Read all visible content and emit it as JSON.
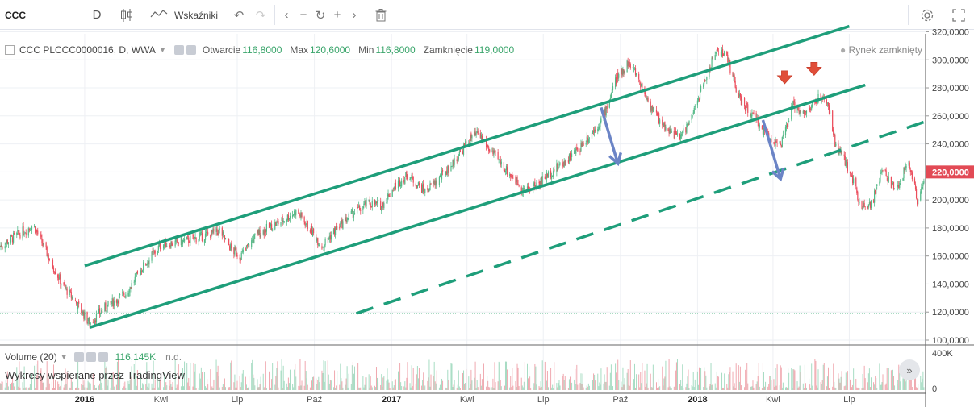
{
  "toolbar": {
    "symbol": "CCC",
    "interval": "D",
    "indicators_label": "Wskaźniki"
  },
  "icons": {
    "candles": "candlestick-icon",
    "indicators": "indicators-wave-icon",
    "undo": "undo-icon",
    "redo": "redo-icon",
    "left": "chevron-left-icon",
    "zoom_out": "minus-icon",
    "reset": "reset-icon",
    "zoom_in": "plus-icon",
    "right": "chevron-right-icon",
    "trash": "trash-icon",
    "settings": "gear-icon",
    "fullscreen": "fullscreen-icon"
  },
  "legend": {
    "name": "CCC PLCCC0000016, D, WWA",
    "open_label": "Otwarcie",
    "open_value": "116,8000",
    "max_label": "Max",
    "max_value": "120,6000",
    "min_label": "Min",
    "min_value": "116,8000",
    "close_label": "Zamknięcie",
    "close_value": "119,0000",
    "market_status": "Rynek zamknięty"
  },
  "volume_legend": {
    "label": "Volume (20)",
    "value": "116,145K",
    "na": "n.d."
  },
  "watermark": "Wykresy wspierane przez TradingView",
  "colors": {
    "up": "#53b987",
    "down": "#eb4d5c",
    "channel": "#1e9e7a",
    "arrow_blue": "#6b84c6",
    "arrow_red": "#e04e39",
    "price_tag": "#e24a55"
  },
  "chart_data": {
    "type": "candlestick",
    "y_ticks": [
      "320,0000",
      "300,0000",
      "280,0000",
      "260,0000",
      "240,0000",
      "220,0000",
      "200,0000",
      "180,0000",
      "160,0000",
      "140,0000",
      "120,0000",
      "100,0000"
    ],
    "y_tick_values": [
      320,
      300,
      280,
      260,
      240,
      220,
      200,
      180,
      160,
      140,
      120,
      100
    ],
    "ylim": [
      100,
      322
    ],
    "x_ticks": [
      "2016",
      "Kwi",
      "Lip",
      "Paź",
      "2017",
      "Kwi",
      "Lip",
      "Paź",
      "2018",
      "Kwi",
      "Lip"
    ],
    "x_tick_bold": [
      true,
      false,
      false,
      false,
      true,
      false,
      false,
      false,
      true,
      false,
      false
    ],
    "x_tick_dates": [
      "2016-01-01",
      "2016-04-01",
      "2016-07-01",
      "2016-10-01",
      "2017-01-01",
      "2017-04-01",
      "2017-07-01",
      "2017-10-01",
      "2018-01-01",
      "2018-04-01",
      "2018-07-01"
    ],
    "x_range": [
      "2015-09-22",
      "2018-09-30"
    ],
    "last_price": 220.0,
    "last_price_label": "220,0000",
    "reference_level": 119.0,
    "volume_max_label": "400K",
    "volume_zero_label": "0",
    "price_path": [
      [
        "2015-09-22",
        167
      ],
      [
        "2015-10-15",
        176
      ],
      [
        "2015-11-01",
        182
      ],
      [
        "2015-11-20",
        158
      ],
      [
        "2015-12-05",
        140
      ],
      [
        "2015-12-20",
        128
      ],
      [
        "2016-01-07",
        112
      ],
      [
        "2016-01-25",
        123
      ],
      [
        "2016-02-20",
        134
      ],
      [
        "2016-03-10",
        152
      ],
      [
        "2016-04-01",
        168
      ],
      [
        "2016-04-25",
        170
      ],
      [
        "2016-05-20",
        174
      ],
      [
        "2016-06-10",
        178
      ],
      [
        "2016-06-25",
        164
      ],
      [
        "2016-07-05",
        160
      ],
      [
        "2016-07-25",
        176
      ],
      [
        "2016-08-20",
        184
      ],
      [
        "2016-09-10",
        192
      ],
      [
        "2016-09-25",
        180
      ],
      [
        "2016-10-10",
        167
      ],
      [
        "2016-10-25",
        178
      ],
      [
        "2016-11-15",
        190
      ],
      [
        "2016-12-05",
        198
      ],
      [
        "2016-12-20",
        196
      ],
      [
        "2017-01-05",
        210
      ],
      [
        "2017-01-20",
        218
      ],
      [
        "2017-02-10",
        206
      ],
      [
        "2017-02-25",
        214
      ],
      [
        "2017-03-15",
        226
      ],
      [
        "2017-04-05",
        244
      ],
      [
        "2017-04-15",
        247
      ],
      [
        "2017-04-25",
        238
      ],
      [
        "2017-05-20",
        220
      ],
      [
        "2017-06-10",
        206
      ],
      [
        "2017-06-25",
        212
      ],
      [
        "2017-07-15",
        222
      ],
      [
        "2017-08-05",
        232
      ],
      [
        "2017-08-25",
        246
      ],
      [
        "2017-09-10",
        258
      ],
      [
        "2017-09-25",
        285
      ],
      [
        "2017-10-10",
        298
      ],
      [
        "2017-10-20",
        290
      ],
      [
        "2017-11-05",
        268
      ],
      [
        "2017-11-20",
        254
      ],
      [
        "2017-12-10",
        244
      ],
      [
        "2017-12-25",
        258
      ],
      [
        "2018-01-05",
        278
      ],
      [
        "2018-01-15",
        294
      ],
      [
        "2018-01-25",
        308
      ],
      [
        "2018-02-05",
        302
      ],
      [
        "2018-02-20",
        272
      ],
      [
        "2018-03-10",
        258
      ],
      [
        "2018-03-25",
        246
      ],
      [
        "2018-04-10",
        238
      ],
      [
        "2018-04-25",
        268
      ],
      [
        "2018-05-10",
        262
      ],
      [
        "2018-05-25",
        272
      ],
      [
        "2018-06-05",
        270
      ],
      [
        "2018-06-15",
        238
      ],
      [
        "2018-07-01",
        222
      ],
      [
        "2018-07-15",
        196
      ],
      [
        "2018-07-28",
        198
      ],
      [
        "2018-08-10",
        222
      ],
      [
        "2018-08-25",
        206
      ],
      [
        "2018-09-10",
        228
      ],
      [
        "2018-09-20",
        200
      ],
      [
        "2018-09-30",
        219
      ]
    ],
    "trend_lines": [
      {
        "name": "upper-channel",
        "dashed": false,
        "start": [
          "2016-01-01",
          153
        ],
        "end": [
          "2018-07-01",
          324
        ]
      },
      {
        "name": "lower-channel",
        "dashed": false,
        "start": [
          "2016-01-07",
          109
        ],
        "end": [
          "2018-07-20",
          282
        ]
      },
      {
        "name": "support-dashed",
        "dashed": true,
        "start": [
          "2016-11-20",
          119
        ],
        "end": [
          "2018-09-30",
          256
        ]
      }
    ],
    "annotations": [
      {
        "kind": "arrow-down-blue",
        "start": [
          "2017-09-08",
          266
        ],
        "end": [
          "2017-09-28",
          226
        ]
      },
      {
        "kind": "arrow-down-blue",
        "start": [
          "2018-03-20",
          257
        ],
        "end": [
          "2018-04-10",
          215
        ]
      },
      {
        "kind": "marker-down-red",
        "at": [
          "2018-04-15",
          287
        ]
      },
      {
        "kind": "marker-down-red",
        "at": [
          "2018-05-20",
          293
        ]
      }
    ]
  }
}
